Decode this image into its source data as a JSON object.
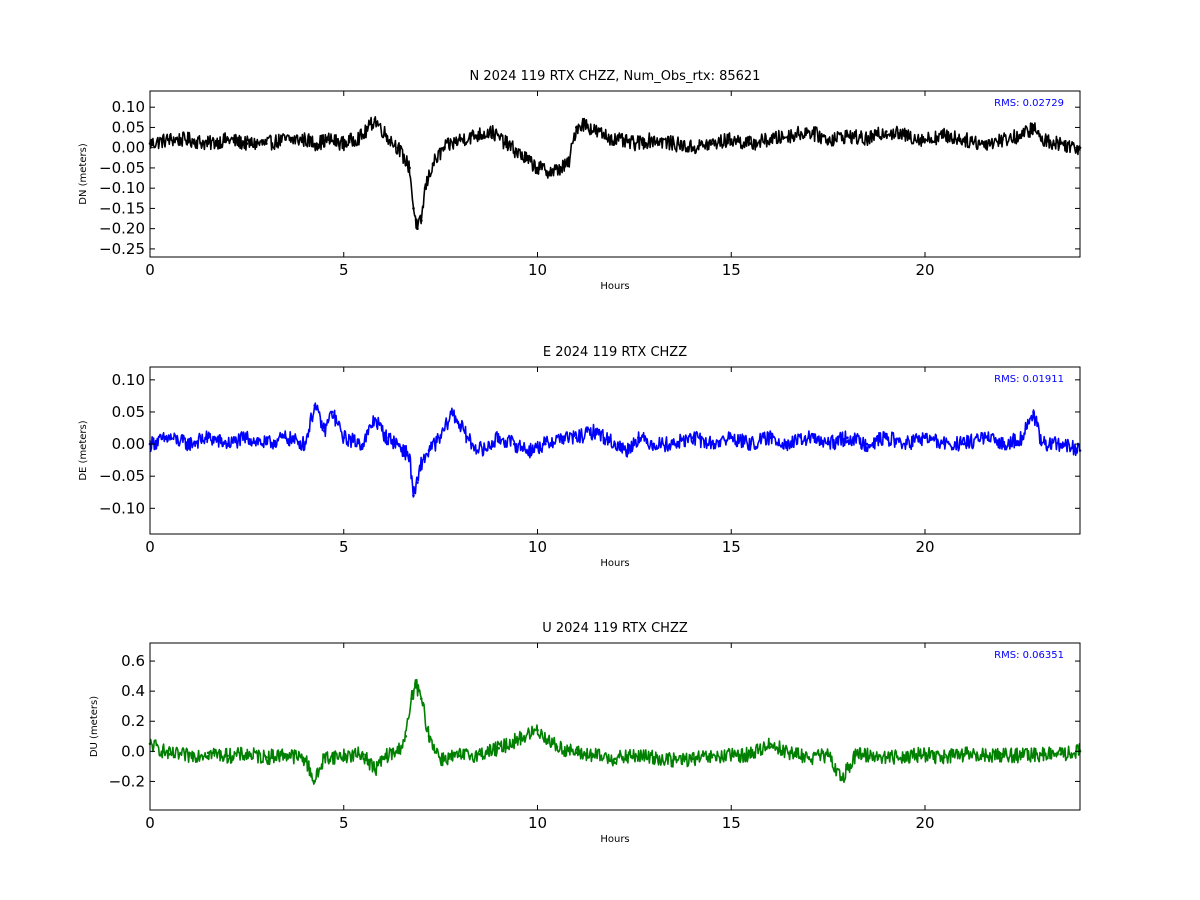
{
  "chart_data": [
    {
      "type": "line",
      "title": "N 2024 119 RTX  CHZZ, Num_Obs_rtx: 85621",
      "xlabel": "Hours",
      "ylabel": "DN (meters)",
      "xlim": [
        0,
        24
      ],
      "ylim": [
        -0.27,
        0.14
      ],
      "xticks": [
        0,
        5,
        10,
        15,
        20
      ],
      "xtick_labels": [
        "0",
        "5",
        "10",
        "15",
        "20"
      ],
      "yticks": [
        0.1,
        0.05,
        0.0,
        -0.05,
        -0.1,
        -0.15,
        -0.2,
        -0.25
      ],
      "ytick_labels": [
        "0.10",
        "0.05",
        "0.00",
        "−0.05",
        "−0.10",
        "−0.15",
        "−0.20",
        "−0.25"
      ],
      "annotation": "RMS:  0.02729",
      "grid": false,
      "series": [
        {
          "color": "#000000",
          "x": [
            0,
            0.5,
            1,
            1.5,
            2,
            2.5,
            3,
            3.5,
            4,
            4.3,
            4.6,
            5,
            5.5,
            5.8,
            6.1,
            6.4,
            6.7,
            6.8,
            6.9,
            7.0,
            7.1,
            7.3,
            7.6,
            8.0,
            8.4,
            8.8,
            9.2,
            9.6,
            10.0,
            10.4,
            10.8,
            11.0,
            11.2,
            11.5,
            12.0,
            12.5,
            13.0,
            13.5,
            14.0,
            14.5,
            15.0,
            15.5,
            16.0,
            16.5,
            17.0,
            17.5,
            18.0,
            18.5,
            19.0,
            19.5,
            20.0,
            20.5,
            21.0,
            21.5,
            22.0,
            22.5,
            22.8,
            23.0,
            23.5,
            24.0
          ],
          "y": [
            0.01,
            0.02,
            0.02,
            0.01,
            0.02,
            0.01,
            0.01,
            0.02,
            0.02,
            0.01,
            0.02,
            0.01,
            0.03,
            0.07,
            0.03,
            0.0,
            -0.05,
            -0.15,
            -0.2,
            -0.18,
            -0.1,
            -0.04,
            0.0,
            0.02,
            0.03,
            0.04,
            0.01,
            -0.02,
            -0.05,
            -0.06,
            -0.04,
            0.05,
            0.06,
            0.04,
            0.02,
            0.01,
            0.02,
            0.01,
            0.0,
            0.01,
            0.02,
            0.01,
            0.02,
            0.03,
            0.04,
            0.02,
            0.03,
            0.02,
            0.04,
            0.03,
            0.02,
            0.03,
            0.02,
            0.01,
            0.02,
            0.03,
            0.05,
            0.02,
            0.01,
            0.0
          ]
        }
      ]
    },
    {
      "type": "line",
      "title": "E 2024 119 RTX  CHZZ",
      "xlabel": "Hours",
      "ylabel": "DE (meters)",
      "xlim": [
        0,
        24
      ],
      "ylim": [
        -0.14,
        0.12
      ],
      "xticks": [
        0,
        5,
        10,
        15,
        20
      ],
      "xtick_labels": [
        "0",
        "5",
        "10",
        "15",
        "20"
      ],
      "yticks": [
        0.1,
        0.05,
        0.0,
        -0.05,
        -0.1
      ],
      "ytick_labels": [
        "0.10",
        "0.05",
        "0.00",
        "−0.05",
        "−0.10"
      ],
      "annotation": "RMS:  0.01911",
      "grid": false,
      "series": [
        {
          "color": "#0000ff",
          "x": [
            0,
            0.5,
            1,
            1.5,
            2,
            2.5,
            3,
            3.5,
            4,
            4.25,
            4.5,
            4.7,
            5,
            5.5,
            5.8,
            6.1,
            6.4,
            6.7,
            6.8,
            6.9,
            7.0,
            7.2,
            7.5,
            7.8,
            8.0,
            8.3,
            8.6,
            9.0,
            9.4,
            9.8,
            10.2,
            10.6,
            11.0,
            11.5,
            12.0,
            12.3,
            12.6,
            13.0,
            13.5,
            14.0,
            14.5,
            15.0,
            15.5,
            16.0,
            16.5,
            17.0,
            17.5,
            18.0,
            18.5,
            19.0,
            19.5,
            20.0,
            20.5,
            21.0,
            21.5,
            22.0,
            22.5,
            22.8,
            23.0,
            23.5,
            24.0
          ],
          "y": [
            0.0,
            0.01,
            0.0,
            0.01,
            0.0,
            0.01,
            0.0,
            0.01,
            0.0,
            0.06,
            0.02,
            0.05,
            0.01,
            0.0,
            0.04,
            0.01,
            0.0,
            -0.02,
            -0.08,
            -0.06,
            -0.03,
            -0.01,
            0.01,
            0.05,
            0.03,
            0.0,
            -0.01,
            0.01,
            0.0,
            -0.01,
            0.0,
            0.01,
            0.01,
            0.02,
            0.0,
            -0.01,
            0.01,
            0.0,
            0.0,
            0.01,
            0.0,
            0.01,
            0.0,
            0.01,
            0.0,
            0.01,
            0.0,
            0.01,
            0.0,
            0.01,
            0.0,
            0.01,
            0.0,
            0.0,
            0.01,
            0.0,
            0.01,
            0.05,
            0.0,
            0.0,
            -0.01
          ]
        }
      ]
    },
    {
      "type": "line",
      "title": "U 2024 119 RTX  CHZZ",
      "xlabel": "Hours",
      "ylabel": "DU (meters)",
      "xlim": [
        0,
        24
      ],
      "ylim": [
        -0.39,
        0.72
      ],
      "xticks": [
        0,
        5,
        10,
        15,
        20
      ],
      "xtick_labels": [
        "0",
        "5",
        "10",
        "15",
        "20"
      ],
      "yticks": [
        0.6,
        0.4,
        0.2,
        0.0,
        -0.2
      ],
      "ytick_labels": [
        "0.6",
        "0.4",
        "0.2",
        "0.0",
        "−0.2"
      ],
      "annotation": "RMS:  0.06351",
      "grid": false,
      "series": [
        {
          "color": "#008000",
          "x": [
            0,
            0.5,
            1,
            1.5,
            2,
            2.5,
            3,
            3.5,
            4,
            4.25,
            4.5,
            5,
            5.5,
            5.8,
            6.1,
            6.4,
            6.6,
            6.75,
            6.85,
            7.0,
            7.2,
            7.5,
            8.0,
            8.5,
            9.0,
            9.5,
            10.0,
            10.5,
            11.0,
            11.5,
            12.0,
            12.5,
            13.0,
            13.5,
            14.0,
            14.5,
            15.0,
            15.5,
            16.0,
            16.5,
            17.0,
            17.5,
            17.85,
            18.2,
            18.5,
            19.0,
            19.5,
            20.0,
            20.5,
            21.0,
            21.5,
            22.0,
            22.5,
            23.0,
            23.5,
            24.0
          ],
          "y": [
            0.05,
            -0.02,
            -0.03,
            -0.01,
            -0.03,
            -0.02,
            -0.04,
            -0.02,
            -0.05,
            -0.2,
            -0.04,
            -0.03,
            -0.02,
            -0.12,
            -0.03,
            0.0,
            0.1,
            0.35,
            0.45,
            0.35,
            0.1,
            -0.05,
            -0.03,
            -0.02,
            0.02,
            0.08,
            0.14,
            0.03,
            -0.01,
            -0.03,
            -0.05,
            -0.03,
            -0.04,
            -0.06,
            -0.05,
            -0.04,
            -0.03,
            -0.02,
            0.05,
            -0.01,
            -0.04,
            -0.03,
            -0.18,
            -0.03,
            -0.02,
            -0.04,
            -0.03,
            -0.02,
            -0.04,
            -0.02,
            -0.03,
            -0.02,
            -0.03,
            -0.02,
            -0.02,
            0.0
          ]
        }
      ]
    }
  ]
}
